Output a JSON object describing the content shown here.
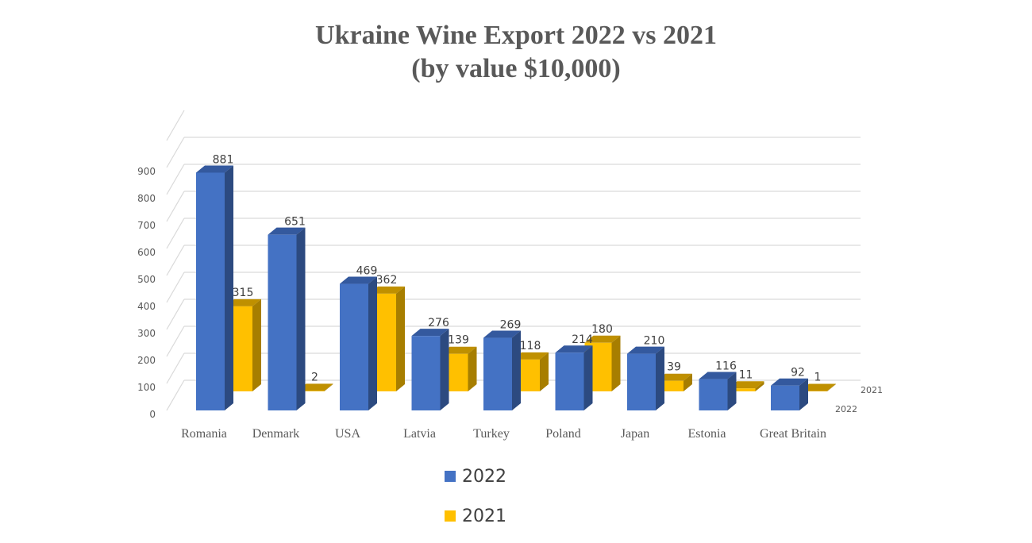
{
  "title_line1": "Ukraine Wine Export 2022 vs 2021",
  "title_line2": "(by value $10,000)",
  "colors": {
    "s2022_front": "#4472C4",
    "s2022_side": "#2C4A80",
    "s2022_top": "#34599E",
    "s2021_front": "#FFC000",
    "s2021_side": "#A77E00",
    "s2021_top": "#BF9000",
    "grid": "#D9D9D9"
  },
  "legend": [
    {
      "label": "2022",
      "color": "#4472C4"
    },
    {
      "label": "2021",
      "color": "#FFC000"
    }
  ],
  "series_axis_labels": [
    "2021",
    "2022"
  ],
  "chart_data": {
    "type": "bar",
    "subtype": "3d-clustered-column",
    "title": "Ukraine Wine Export 2022 vs 2021 (by value $10,000)",
    "xlabel": "",
    "ylabel": "",
    "ylim": [
      0,
      1000
    ],
    "yticks": [
      0,
      100,
      200,
      300,
      400,
      500,
      600,
      700,
      800,
      900
    ],
    "grid": true,
    "legend_position": "bottom",
    "categories": [
      "Romania",
      "Denmark",
      "USA",
      "Latvia",
      "Turkey",
      "Poland",
      "Japan",
      "Estonia",
      "Great Britain"
    ],
    "series": [
      {
        "name": "2022",
        "values": [
          881,
          651,
          469,
          276,
          269,
          214,
          210,
          116,
          92
        ]
      },
      {
        "name": "2021",
        "values": [
          315,
          2,
          362,
          139,
          118,
          180,
          39,
          11,
          1
        ]
      }
    ]
  }
}
